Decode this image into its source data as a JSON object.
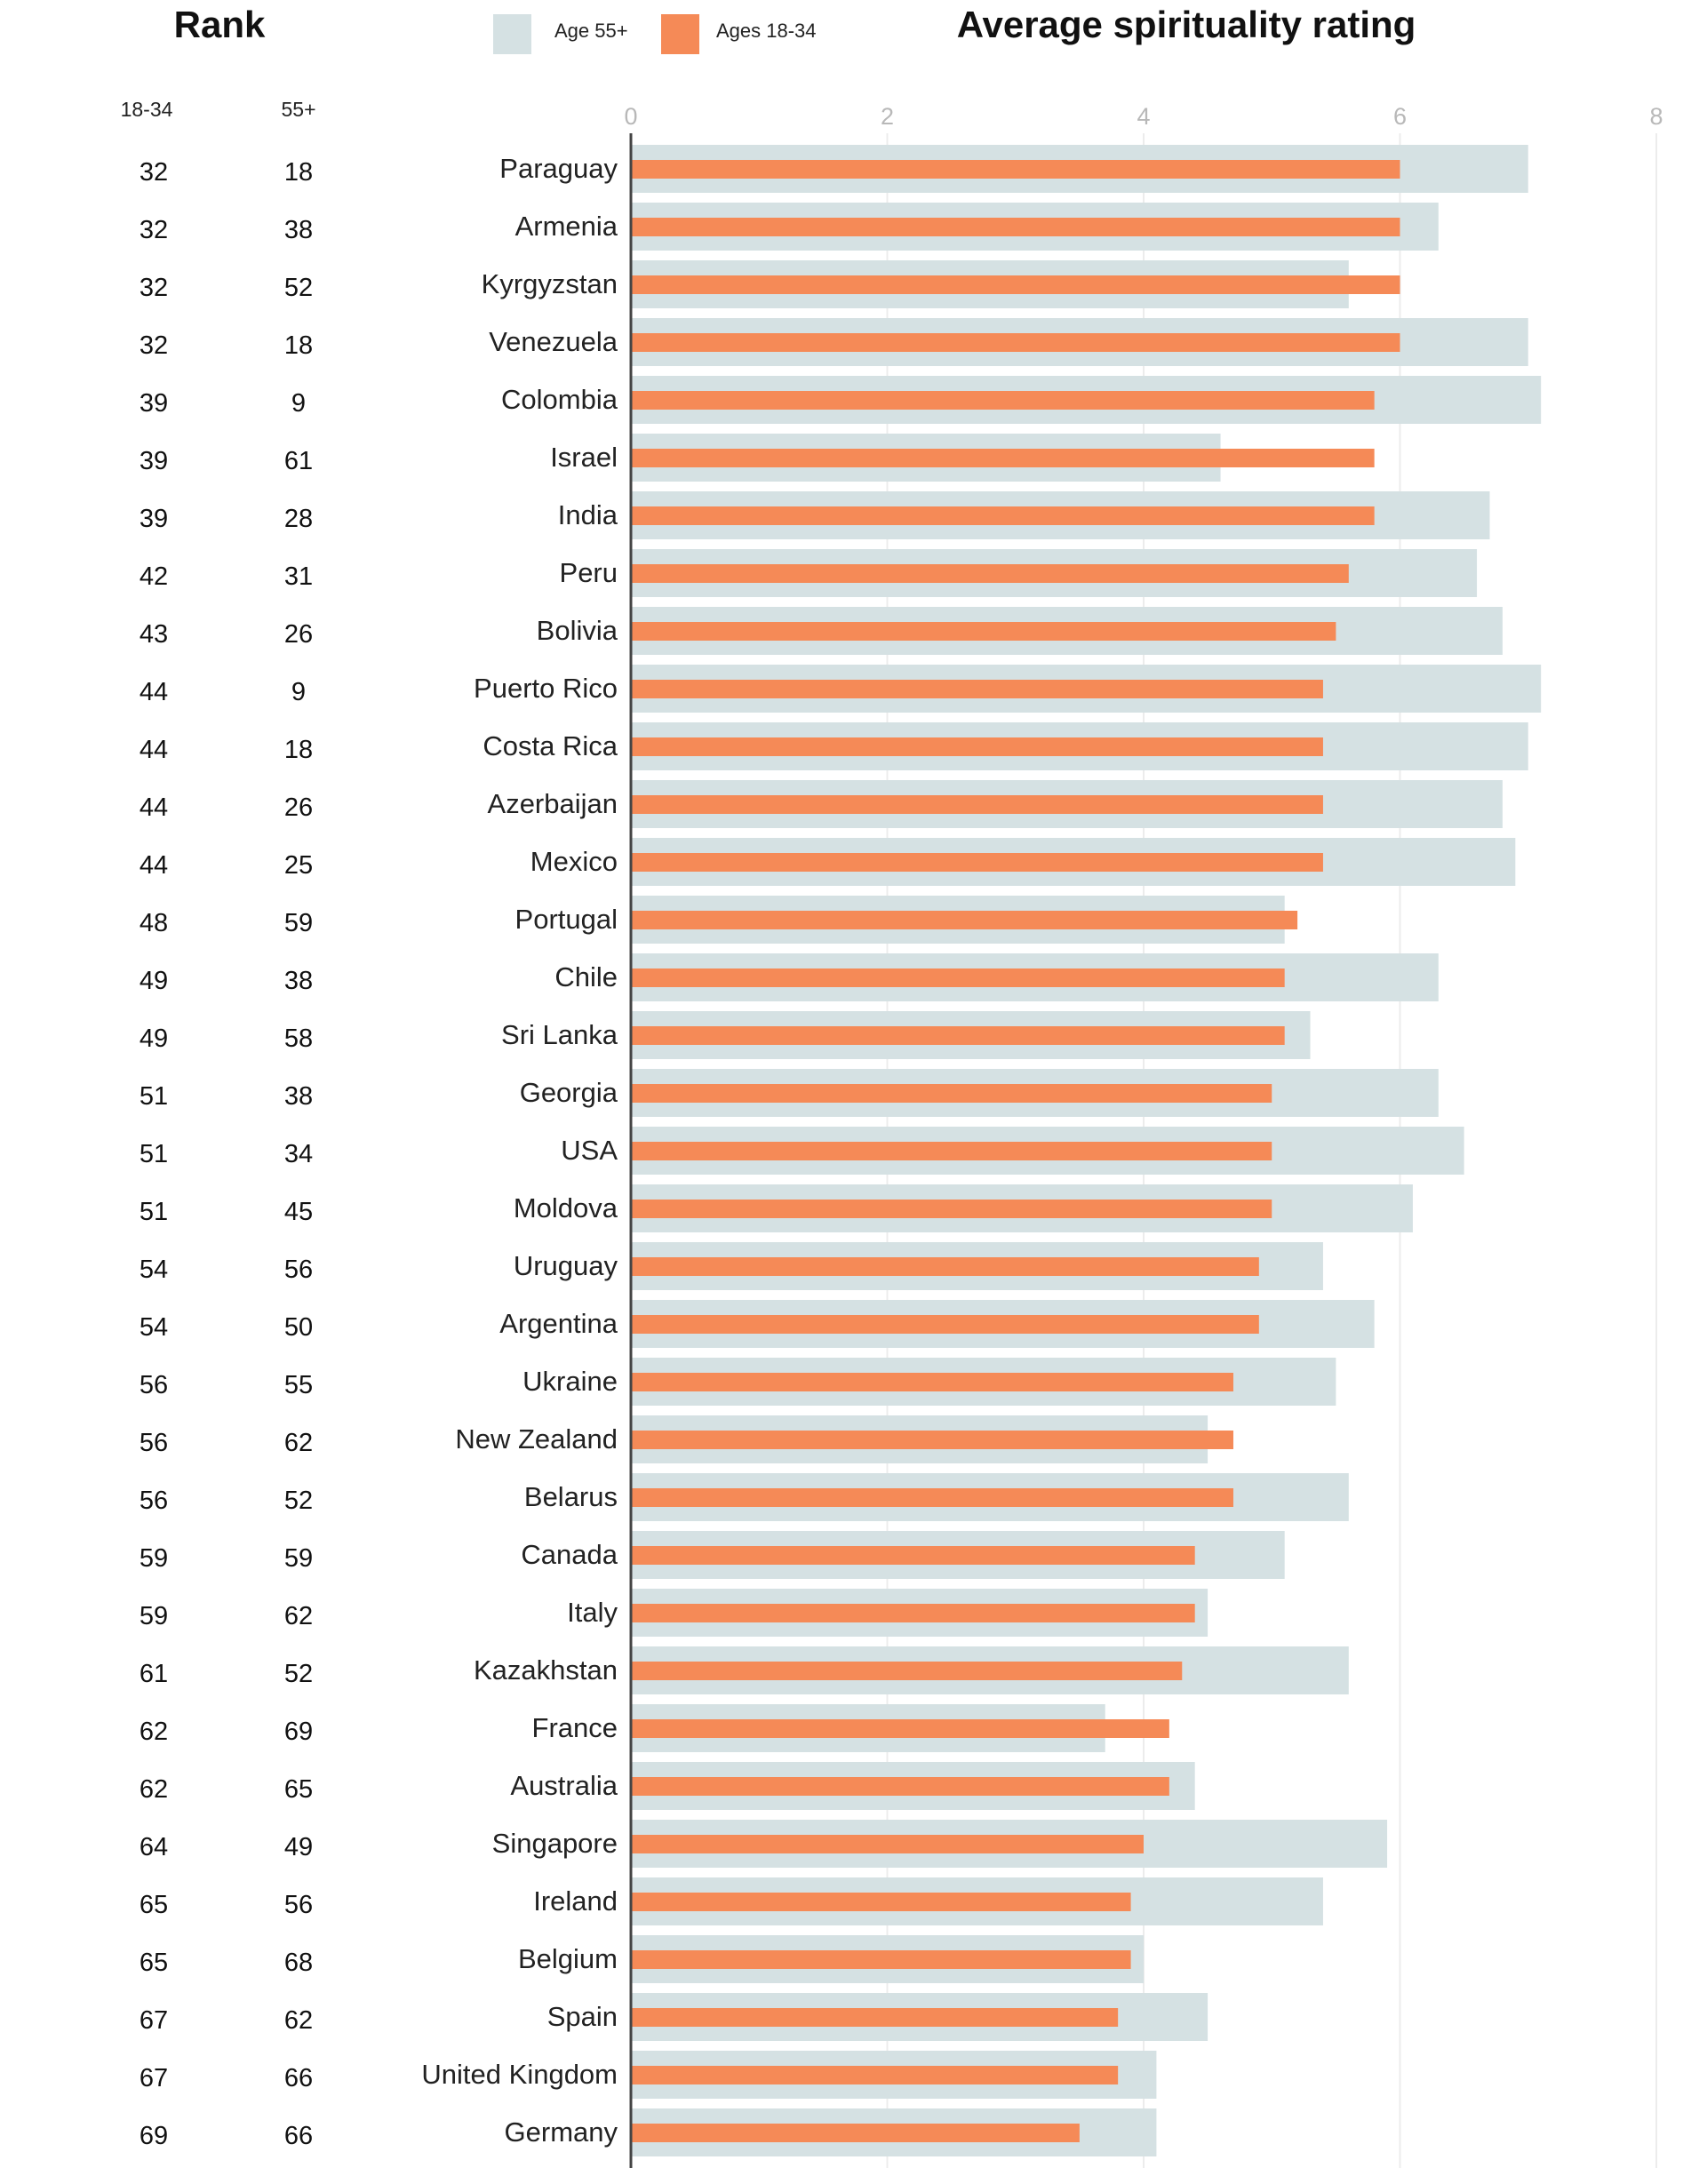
{
  "header": {
    "rank_title": "Rank",
    "rank_col_1": "18-34",
    "rank_col_2": "55+"
  },
  "chart_data": {
    "type": "bar",
    "orientation": "horizontal",
    "title": "Average spirituality rating",
    "xlim": [
      0,
      8
    ],
    "xticks": [
      0,
      2,
      4,
      6,
      8
    ],
    "grid": true,
    "legend_position": "top",
    "colors": {
      "age55": "#d5e1e3",
      "age1834": "#f58a57"
    },
    "categories": [
      "Paraguay",
      "Armenia",
      "Kyrgyzstan",
      "Venezuela",
      "Colombia",
      "Israel",
      "India",
      "Peru",
      "Bolivia",
      "Puerto Rico",
      "Costa Rica",
      "Azerbaijan",
      "Mexico",
      "Portugal",
      "Chile",
      "Sri Lanka",
      "Georgia",
      "USA",
      "Moldova",
      "Uruguay",
      "Argentina",
      "Ukraine",
      "New Zealand",
      "Belarus",
      "Canada",
      "Italy",
      "Kazakhstan",
      "France",
      "Australia",
      "Singapore",
      "Ireland",
      "Belgium",
      "Spain",
      "United Kingdom",
      "Germany"
    ],
    "series": [
      {
        "name": "Age 55+",
        "values": [
          7.0,
          6.3,
          5.6,
          7.0,
          7.1,
          4.6,
          6.7,
          6.6,
          6.8,
          7.1,
          7.0,
          6.8,
          6.9,
          5.1,
          6.3,
          5.3,
          6.3,
          6.5,
          6.1,
          5.4,
          5.8,
          5.5,
          4.5,
          5.6,
          5.1,
          4.5,
          5.6,
          3.7,
          4.4,
          5.9,
          5.4,
          4.0,
          4.5,
          4.1,
          4.1
        ]
      },
      {
        "name": "Ages 18-34",
        "values": [
          6.0,
          6.0,
          6.0,
          6.0,
          5.8,
          5.8,
          5.8,
          5.6,
          5.5,
          5.4,
          5.4,
          5.4,
          5.4,
          5.2,
          5.1,
          5.1,
          5.0,
          5.0,
          5.0,
          4.9,
          4.9,
          4.7,
          4.7,
          4.7,
          4.4,
          4.4,
          4.3,
          4.2,
          4.2,
          4.0,
          3.9,
          3.9,
          3.8,
          3.8,
          3.5
        ]
      }
    ],
    "rank_18_34": [
      32,
      32,
      32,
      32,
      39,
      39,
      39,
      42,
      43,
      44,
      44,
      44,
      44,
      48,
      49,
      49,
      51,
      51,
      51,
      54,
      54,
      56,
      56,
      56,
      59,
      59,
      61,
      62,
      62,
      64,
      65,
      65,
      67,
      67,
      69
    ],
    "rank_55": [
      18,
      38,
      52,
      18,
      9,
      61,
      28,
      31,
      26,
      9,
      18,
      26,
      25,
      59,
      38,
      58,
      38,
      34,
      45,
      56,
      50,
      55,
      62,
      52,
      59,
      62,
      52,
      69,
      65,
      49,
      56,
      68,
      62,
      66,
      66
    ]
  }
}
